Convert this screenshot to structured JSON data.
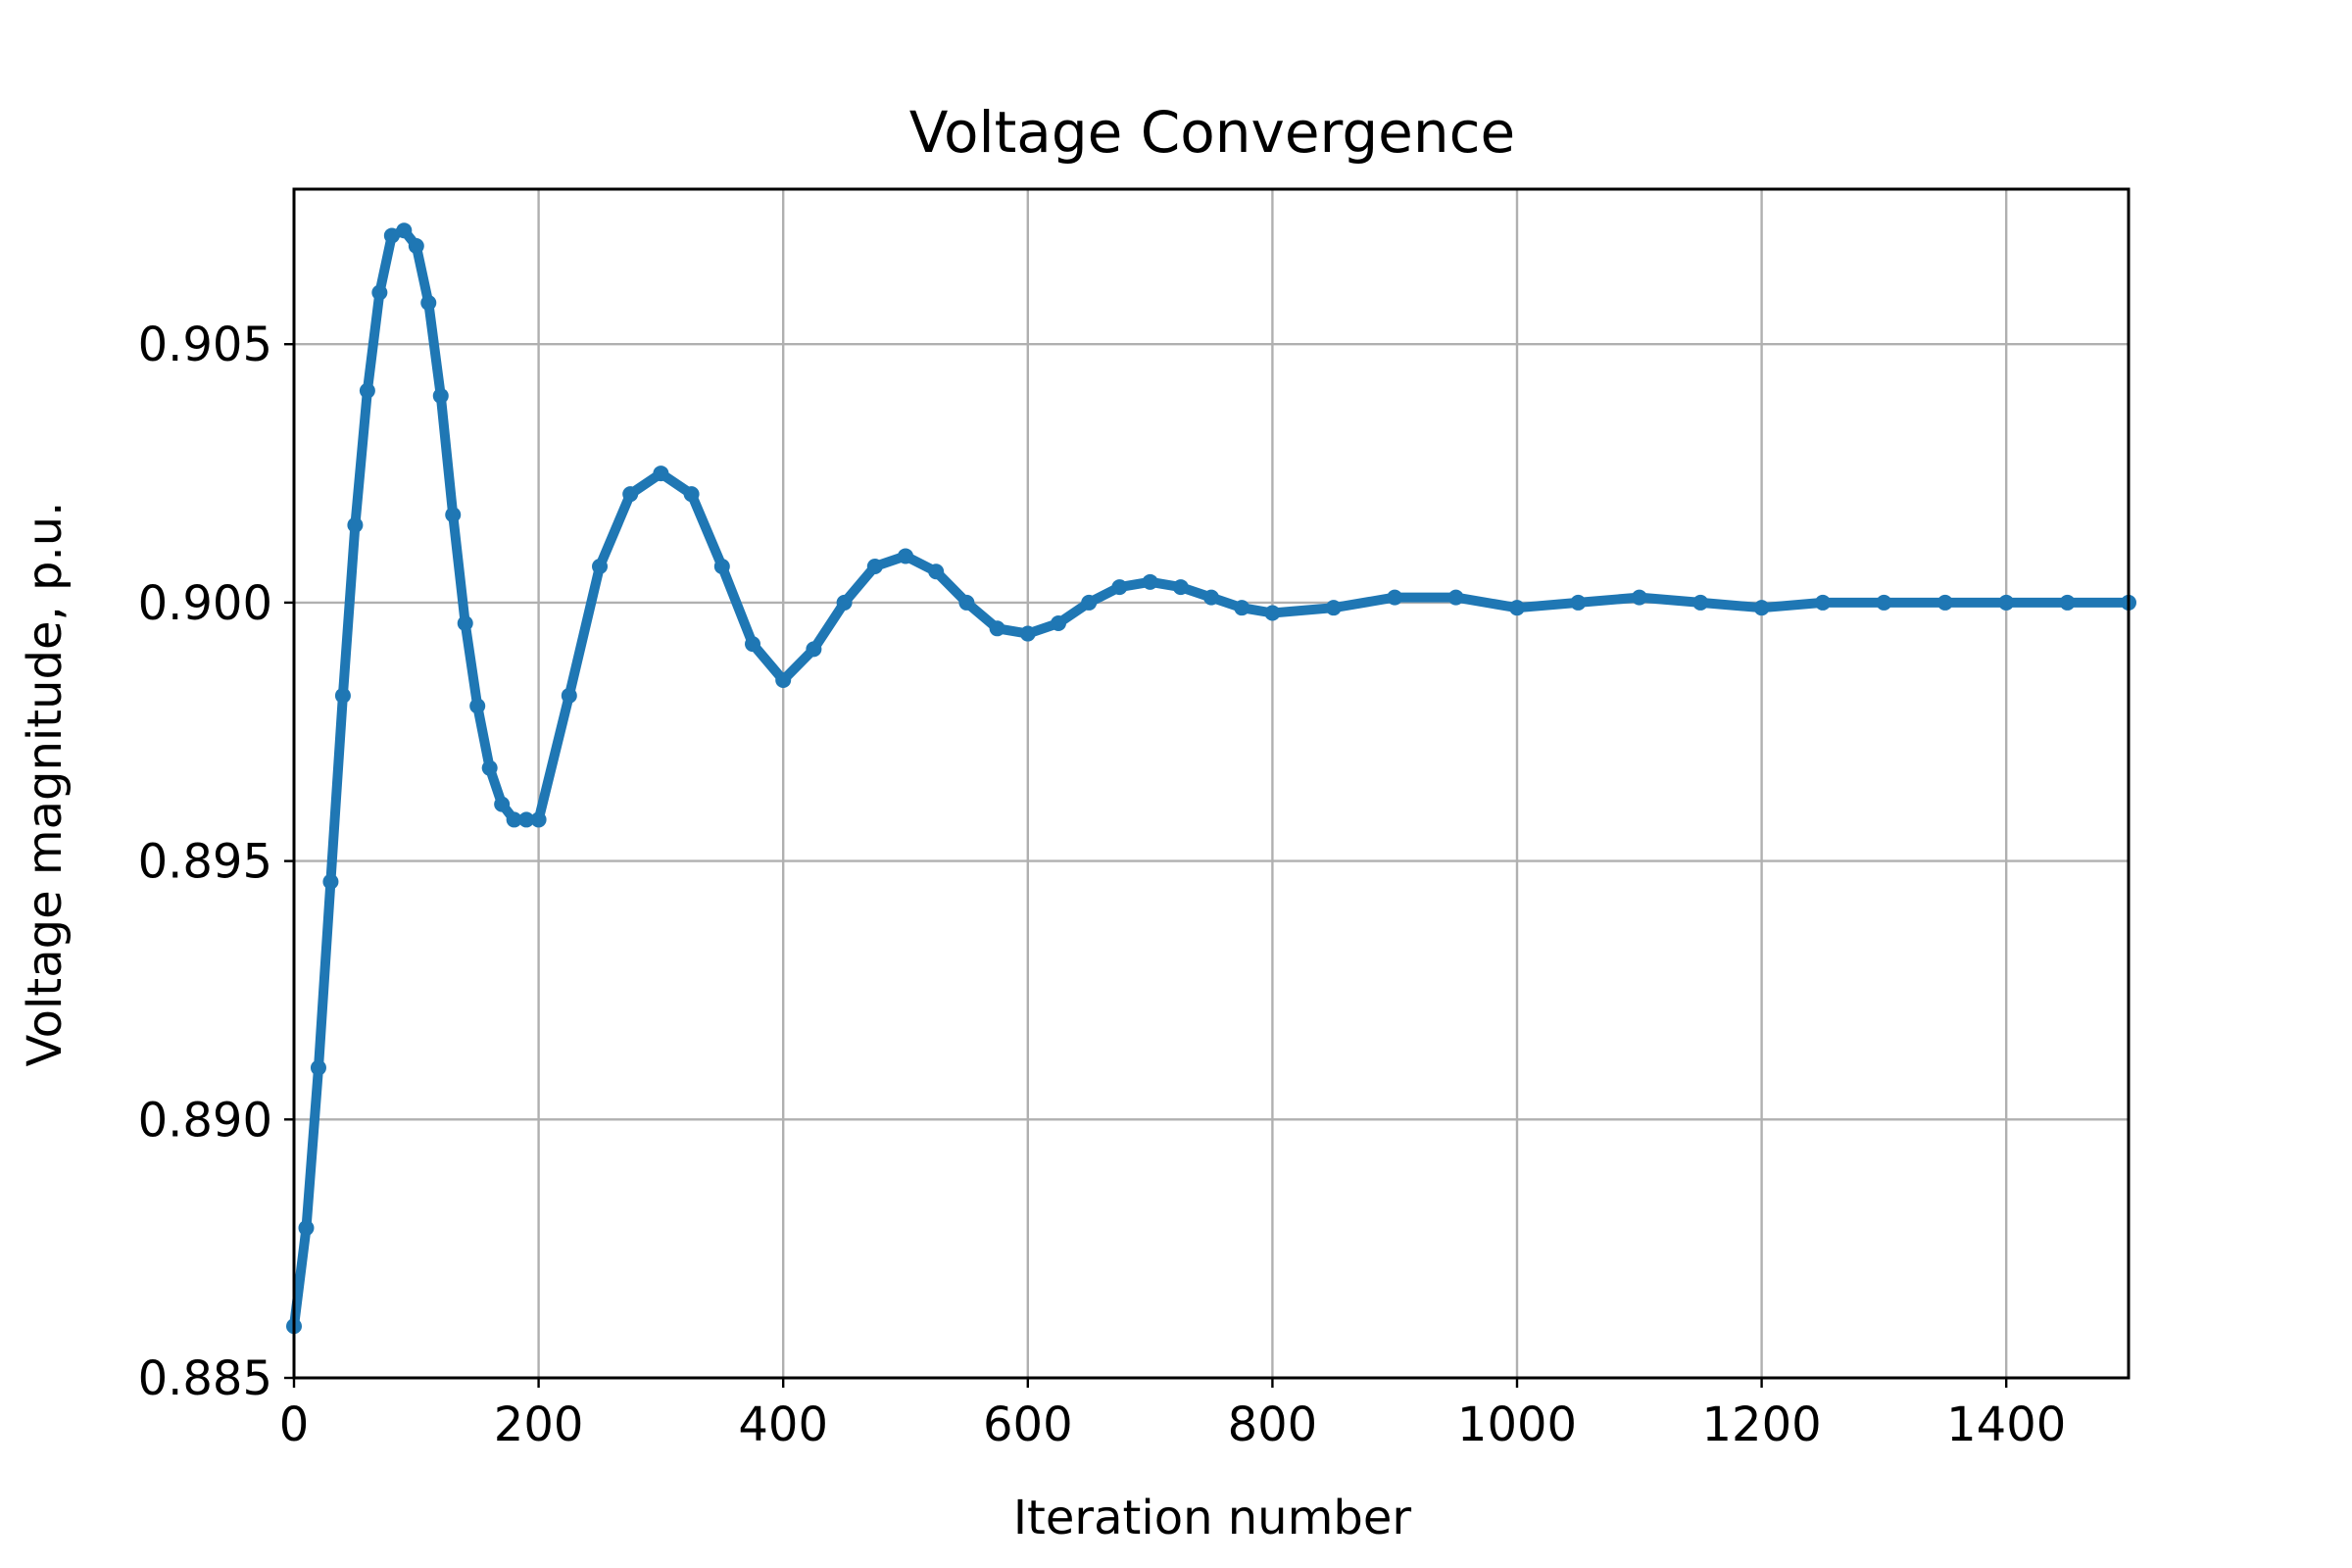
{
  "chart_data": {
    "type": "scatter",
    "title": "Voltage Convergence",
    "xlabel": "Iteration number",
    "ylabel": "Voltage magnitude, p.u.",
    "xlim": [
      0,
      1500
    ],
    "ylim": [
      0.885,
      0.908
    ],
    "xticks": [
      0,
      200,
      400,
      600,
      800,
      1000,
      1200,
      1400
    ],
    "yticks": [
      0.885,
      0.89,
      0.895,
      0.9,
      0.905
    ],
    "xtick_labels": [
      "0",
      "200",
      "400",
      "600",
      "800",
      "1000",
      "1200",
      "1400"
    ],
    "ytick_labels": [
      "0.885",
      "0.890",
      "0.895",
      "0.900",
      "0.905"
    ],
    "grid": true,
    "legend": "none",
    "series": [
      {
        "color": "#1f77b4",
        "x": [
          0,
          10,
          20,
          30,
          40,
          50,
          60,
          70,
          80,
          90,
          100,
          110,
          120,
          130,
          140,
          150,
          160,
          170,
          180,
          190,
          200,
          225,
          250,
          275,
          300,
          325,
          350,
          375,
          400,
          425,
          450,
          475,
          500,
          525,
          550,
          575,
          600,
          625,
          650,
          675,
          700,
          725,
          750,
          775,
          800,
          850,
          900,
          950,
          1000,
          1050,
          1100,
          1150,
          1200,
          1250,
          1300,
          1350,
          1400,
          1450,
          1500
        ],
        "y": [
          0.886,
          0.8879,
          0.891,
          0.8946,
          0.8982,
          0.9015,
          0.9041,
          0.906,
          0.9071,
          0.9072,
          0.9069,
          0.9058,
          0.904,
          0.9017,
          0.8996,
          0.898,
          0.8968,
          0.8961,
          0.8958,
          0.8958,
          0.8958,
          0.8982,
          0.9007,
          0.9021,
          0.9025,
          0.9021,
          0.9007,
          0.8992,
          0.8985,
          0.8991,
          0.9,
          0.9007,
          0.9009,
          0.9006,
          0.9,
          0.8995,
          0.8994,
          0.8996,
          0.9,
          0.9003,
          0.9004,
          0.9003,
          0.9001,
          0.8999,
          0.8998,
          0.8999,
          0.9001,
          0.9001,
          0.8999,
          0.9,
          0.9001,
          0.9,
          0.8999,
          0.9,
          0.9,
          0.9,
          0.9,
          0.9,
          0.9
        ]
      }
    ]
  }
}
